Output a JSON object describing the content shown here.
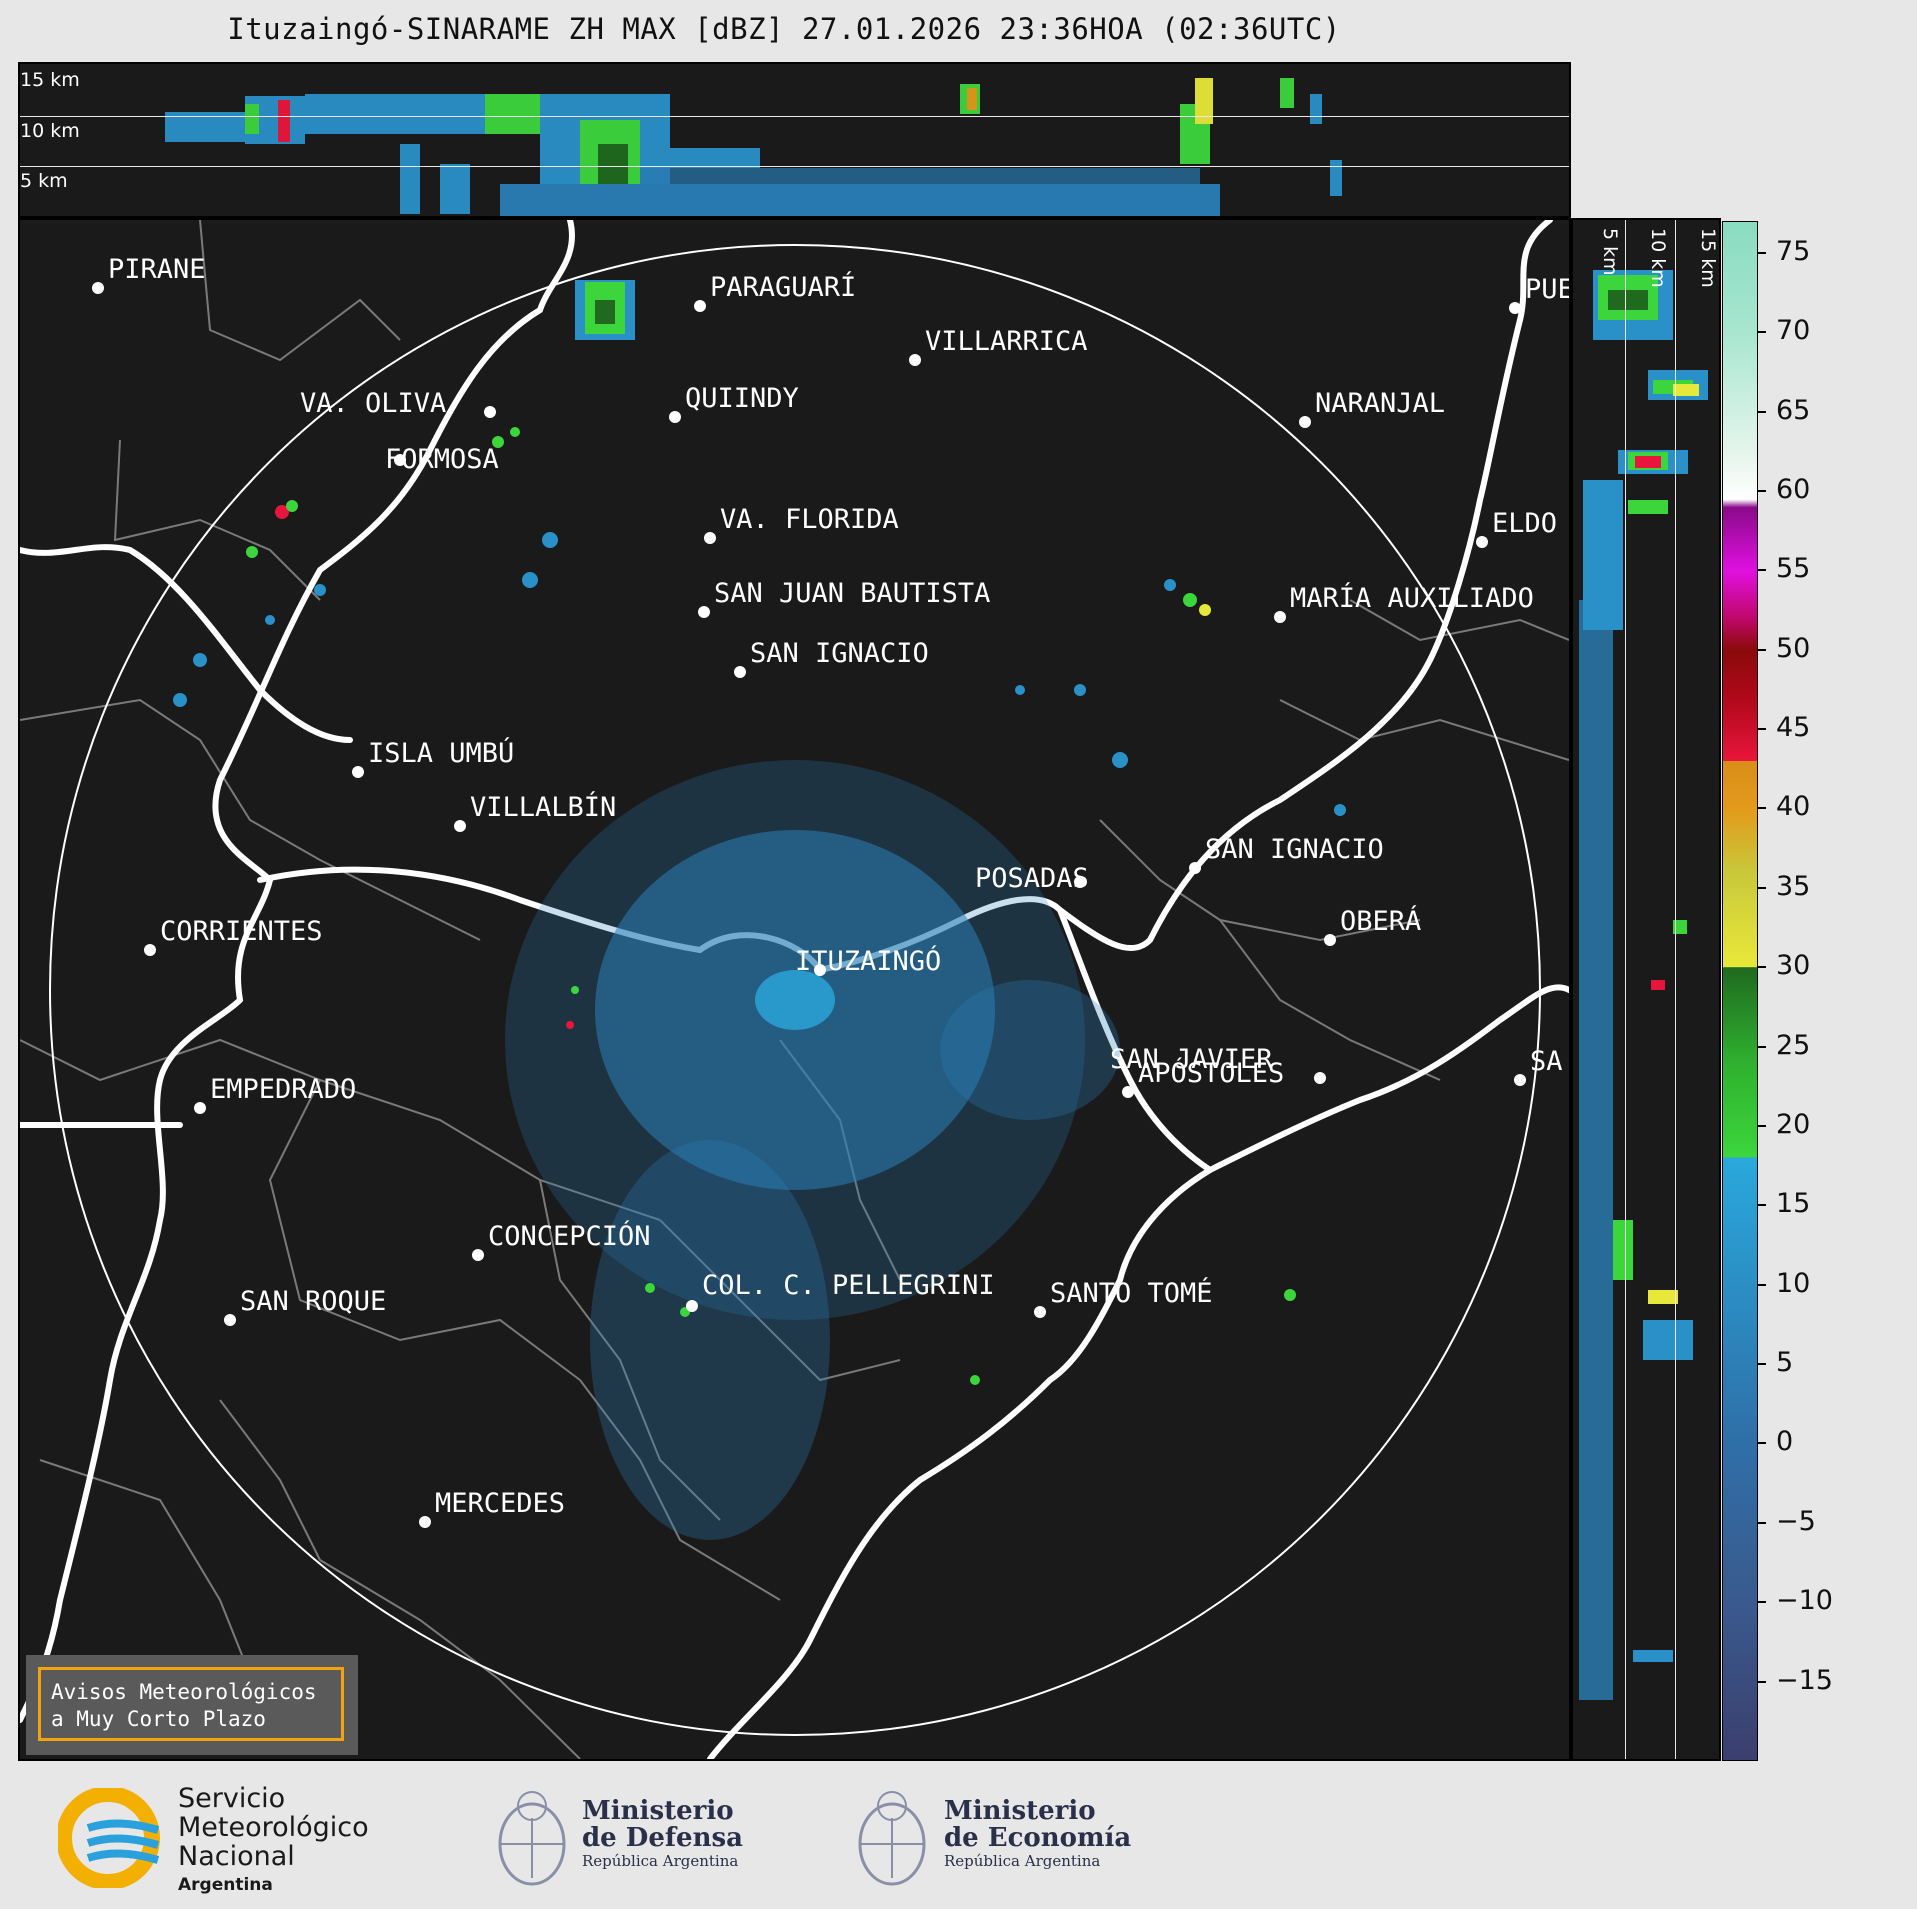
{
  "title": "Ituzaingó-SINARAME ZH MAX [dBZ] 27.01.2026 23:36HOA (02:36UTC)",
  "altitude_labels": [
    "15 km",
    "10 km",
    "5 km"
  ],
  "side_altitude_labels": [
    "5 km",
    "10 km",
    "15 km"
  ],
  "cities": [
    {
      "name": "PIRANE"
    },
    {
      "name": "PARAGUARÍ"
    },
    {
      "name": "VILLARRICA"
    },
    {
      "name": "QUIINDY"
    },
    {
      "name": "VA. OLIVA"
    },
    {
      "name": "NARANJAL"
    },
    {
      "name": "FORMOSA"
    },
    {
      "name": "PUE"
    },
    {
      "name": "VA. FLORIDA"
    },
    {
      "name": "ELDO"
    },
    {
      "name": "MARÍA AUXILIADO"
    },
    {
      "name": "SAN JUAN BAUTISTA"
    },
    {
      "name": "SAN IGNACIO"
    },
    {
      "name": "ISLA UMBÚ"
    },
    {
      "name": "VILLALBÍN"
    },
    {
      "name": "SAN IGNACIO"
    },
    {
      "name": "POSADAS"
    },
    {
      "name": "CORRIENTES"
    },
    {
      "name": "ITUZAINGÓ"
    },
    {
      "name": "OBERÁ"
    },
    {
      "name": "APÓSTOLES"
    },
    {
      "name": "SAN JAVIER"
    },
    {
      "name": "SA"
    },
    {
      "name": "EMPEDRADO"
    },
    {
      "name": "CONCEPCIÓN"
    },
    {
      "name": "COL. C. PELLEGRINI"
    },
    {
      "name": "SANTO TOMÉ"
    },
    {
      "name": "SAN ROQUE"
    },
    {
      "name": "MERCEDES"
    }
  ],
  "colorbar": {
    "unit": "dBZ",
    "min": -20,
    "max": 77,
    "ticks": [
      "75",
      "70",
      "65",
      "60",
      "55",
      "50",
      "45",
      "40",
      "35",
      "30",
      "25",
      "20",
      "15",
      "10",
      "5",
      "0",
      "−5",
      "−10",
      "−15"
    ],
    "colors": {
      "low": "#3b3f6e",
      "blue": "#2b8fc4",
      "cyan": "#2aa8dc",
      "green": "#3cd63c",
      "darkgreen": "#1f6a1f",
      "yellow": "#e8e83a",
      "orange": "#e39a1a",
      "red": "#e8163c",
      "darkred": "#8a0a0a",
      "magenta": "#e010e0",
      "purple": "#8a0a8a",
      "white": "#ffffff",
      "mint": "#88dcc0"
    }
  },
  "avisos": {
    "line1": "Avisos Meteorológicos",
    "line2": "a Muy Corto Plazo"
  },
  "logos": {
    "smn": {
      "line1": "Servicio",
      "line2": "Meteorológico",
      "line3": "Nacional",
      "line4": "Argentina"
    },
    "defensa": {
      "line1": "Ministerio",
      "line2": "de Defensa",
      "line3": "República Argentina"
    },
    "economia": {
      "line1": "Ministerio",
      "line2": "de Economía",
      "line3": "República Argentina"
    }
  }
}
